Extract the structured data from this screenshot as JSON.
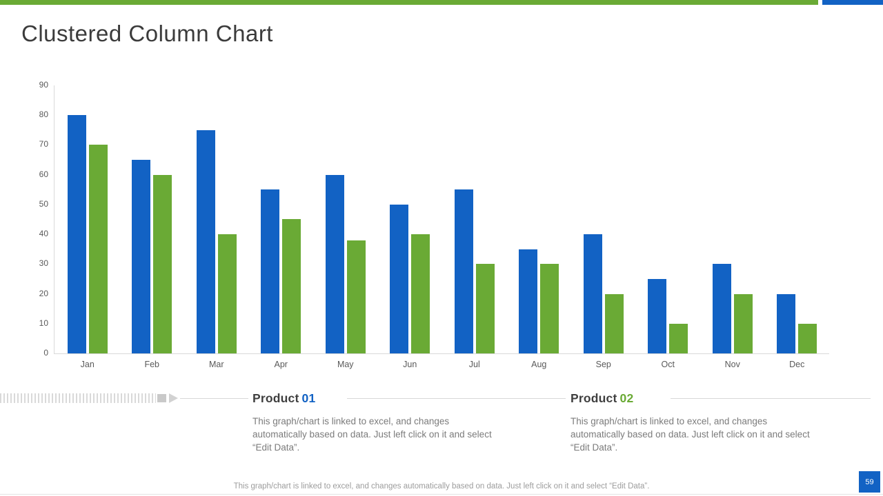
{
  "title": "Clustered Column Chart",
  "colors": {
    "blue": "#1262c4",
    "green": "#6aaa35",
    "axis_line": "#d9d9d9",
    "axis_text": "#595959"
  },
  "chart_data": {
    "type": "bar",
    "title": "Clustered Column Chart",
    "categories": [
      "Jan",
      "Feb",
      "Mar",
      "Apr",
      "May",
      "Jun",
      "Jul",
      "Aug",
      "Sep",
      "Oct",
      "Nov",
      "Dec"
    ],
    "series": [
      {
        "name": "Product 01",
        "color": "#1262c4",
        "values": [
          80,
          65,
          75,
          55,
          60,
          50,
          55,
          35,
          40,
          25,
          30,
          20
        ]
      },
      {
        "name": "Product 02",
        "color": "#6aaa35",
        "values": [
          70,
          60,
          40,
          45,
          38,
          40,
          30,
          30,
          20,
          10,
          20,
          10
        ]
      }
    ],
    "xlabel": "",
    "ylabel": "",
    "ylim": [
      0,
      90
    ],
    "yticks": [
      90,
      80,
      70,
      60,
      50,
      40,
      30,
      20,
      10,
      0
    ],
    "grid": false,
    "legend_position": "below-as-text-blocks"
  },
  "products": [
    {
      "label": "Product",
      "number": "01",
      "number_color": "#1262c4",
      "description": "This graph/chart is linked to excel, and changes automatically based on data. Just left click on it and select “Edit Data”."
    },
    {
      "label": "Product",
      "number": "02",
      "number_color": "#6aaa35",
      "description": "This graph/chart is linked to excel, and changes automatically based on data. Just left click on it and select “Edit Data”."
    }
  ],
  "footer": {
    "text": "This graph/chart is linked to excel, and changes automatically based on data. Just left click on it and select “Edit Data”.",
    "page_number": "59"
  }
}
